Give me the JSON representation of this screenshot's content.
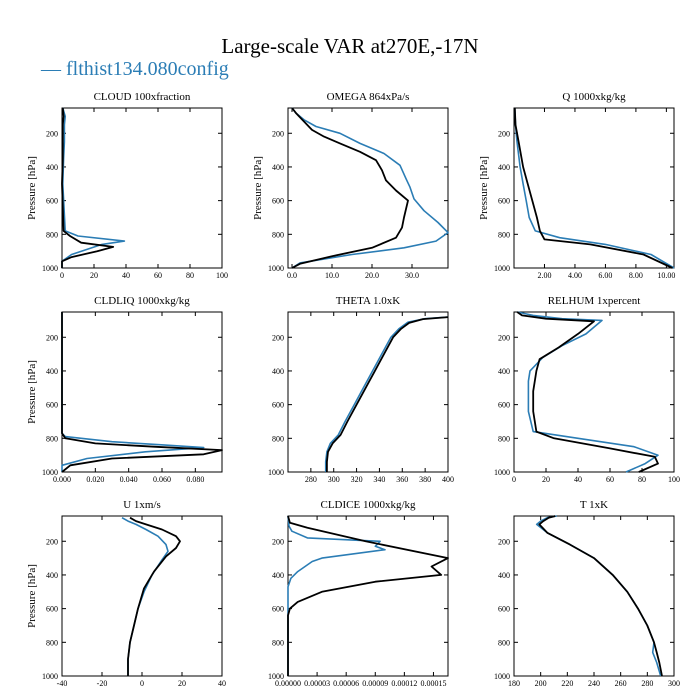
{
  "figure": {
    "title": "Large-scale VAR at270E,-17N",
    "legend": "— flthist134.080config",
    "colors": {
      "model": "#2b7db5",
      "observed": "#000000"
    }
  },
  "chart_data": [
    {
      "type": "line",
      "title": "CLOUD  100xfraction",
      "ylabel": "Pressure [hPa]",
      "xlim": [
        0,
        100
      ],
      "ylim": [
        1000,
        50
      ],
      "xticks": [
        0,
        20,
        40,
        60,
        80,
        100
      ],
      "xtick_labels": [
        "0",
        "20",
        "40",
        "60",
        "80",
        "100"
      ],
      "yticks": [
        200,
        400,
        600,
        800,
        1000
      ],
      "ytick_labels": [
        "200",
        "400",
        "600",
        "800",
        "1000"
      ],
      "series": [
        {
          "color": "#2b7db5",
          "x": [
            0.5,
            2,
            1.5,
            1.5,
            1,
            0.5,
            2,
            10,
            39,
            25,
            6,
            0,
            0
          ],
          "y": [
            50,
            100,
            150,
            250,
            350,
            500,
            780,
            810,
            840,
            860,
            920,
            960,
            1000
          ]
        },
        {
          "color": "#000000",
          "x": [
            0.5,
            1,
            0.5,
            0.5,
            0.5,
            0,
            1,
            5,
            12,
            32,
            22,
            6,
            0,
            0
          ],
          "y": [
            50,
            100,
            150,
            250,
            350,
            500,
            780,
            810,
            850,
            875,
            900,
            935,
            960,
            1000
          ]
        }
      ]
    },
    {
      "type": "line",
      "title": "OMEGA  864xPa/s",
      "ylabel": "Pressure [hPa]",
      "xlim": [
        -1,
        39
      ],
      "ylim": [
        1000,
        50
      ],
      "xticks": [
        0,
        10,
        20,
        30
      ],
      "xtick_labels": [
        "0.0",
        "10.0",
        "20.0",
        "30.0"
      ],
      "series": [
        {
          "color": "#2b7db5",
          "x": [
            0,
            1,
            3,
            6,
            12,
            17,
            23,
            27,
            28.5,
            29.5,
            30.5,
            33,
            36.5,
            39,
            36,
            28,
            15,
            2,
            0
          ],
          "y": [
            50,
            80,
            120,
            160,
            200,
            260,
            320,
            390,
            470,
            520,
            590,
            660,
            730,
            790,
            840,
            880,
            920,
            970,
            1000
          ]
        },
        {
          "color": "#000000",
          "x": [
            0,
            1,
            3,
            5,
            8,
            12,
            17,
            21,
            22.5,
            23.5,
            26,
            29,
            28,
            27.5,
            26,
            20,
            10,
            2,
            0
          ],
          "y": [
            50,
            80,
            130,
            180,
            220,
            260,
            310,
            360,
            420,
            480,
            540,
            600,
            700,
            760,
            820,
            880,
            930,
            975,
            1000
          ]
        }
      ]
    },
    {
      "type": "line",
      "title": "Q  1000xkg/kg",
      "ylabel": "Pressure [hPa]",
      "xlim": [
        0,
        10.5
      ],
      "ylim": [
        1000,
        50
      ],
      "xticks": [
        2,
        4,
        6,
        8,
        10
      ],
      "xtick_labels": [
        "2.00",
        "4.00",
        "6.00",
        "8.00",
        "10.00"
      ],
      "series": [
        {
          "color": "#2b7db5",
          "x": [
            0.05,
            0.1,
            0.2,
            0.4,
            0.6,
            0.8,
            1.0,
            1.4,
            3,
            6,
            9,
            10.5
          ],
          "y": [
            50,
            150,
            250,
            400,
            500,
            600,
            700,
            780,
            820,
            860,
            920,
            1000
          ]
        },
        {
          "color": "#000000",
          "x": [
            0.05,
            0.1,
            0.3,
            0.6,
            0.9,
            1.2,
            1.5,
            1.7,
            2,
            5,
            8.5,
            10.4
          ],
          "y": [
            50,
            150,
            250,
            400,
            500,
            600,
            700,
            780,
            830,
            860,
            920,
            1000
          ]
        }
      ]
    },
    {
      "type": "line",
      "title": "CLDLIQ  1000xkg/kg",
      "ylabel": "Pressure [hPa]",
      "xlim": [
        0,
        0.096
      ],
      "ylim": [
        1000,
        50
      ],
      "xticks": [
        0,
        0.02,
        0.04,
        0.06,
        0.08
      ],
      "xtick_labels": [
        "0.000",
        "0.020",
        "0.040",
        "0.060",
        "0.080"
      ],
      "series": [
        {
          "color": "#2b7db5",
          "x": [
            0,
            0,
            0,
            0.002,
            0.03,
            0.062,
            0.085,
            0.05,
            0.015,
            0,
            0
          ],
          "y": [
            50,
            400,
            770,
            790,
            820,
            840,
            855,
            880,
            920,
            960,
            1000
          ]
        },
        {
          "color": "#000000",
          "x": [
            0,
            0,
            0,
            0.002,
            0.02,
            0.055,
            0.096,
            0.085,
            0.03,
            0.005,
            0
          ],
          "y": [
            50,
            400,
            770,
            800,
            830,
            850,
            870,
            895,
            920,
            960,
            1000
          ]
        }
      ]
    },
    {
      "type": "line",
      "title": "THETA  1.0xK",
      "xlim": [
        260,
        400
      ],
      "ylim": [
        1000,
        50
      ],
      "xticks": [
        280,
        300,
        320,
        340,
        360,
        380,
        400
      ],
      "xtick_labels": [
        "280",
        "300",
        "320",
        "340",
        "360",
        "380",
        "400"
      ],
      "series": [
        {
          "color": "#2b7db5",
          "x": [
            400,
            380,
            365,
            357,
            350,
            342,
            334,
            326,
            318,
            310,
            304,
            297,
            294,
            293,
            293
          ],
          "y": [
            80,
            90,
            110,
            150,
            200,
            300,
            400,
            500,
            600,
            700,
            780,
            830,
            880,
            940,
            1000
          ]
        },
        {
          "color": "#000000",
          "x": [
            400,
            378,
            366,
            359,
            352,
            344,
            336,
            328,
            320,
            312,
            306,
            299,
            295,
            294,
            294
          ],
          "y": [
            80,
            92,
            115,
            150,
            200,
            300,
            400,
            500,
            600,
            700,
            780,
            830,
            880,
            940,
            1000
          ]
        }
      ]
    },
    {
      "type": "line",
      "title": "RELHUM  1xpercent",
      "xlim": [
        0,
        100
      ],
      "ylim": [
        1000,
        50
      ],
      "xticks": [
        0,
        20,
        40,
        60,
        80,
        100
      ],
      "xtick_labels": [
        "0",
        "20",
        "40",
        "60",
        "80",
        "100"
      ],
      "series": [
        {
          "color": "#2b7db5",
          "x": [
            2,
            12,
            30,
            55,
            45,
            30,
            18,
            10,
            9,
            9,
            9,
            12,
            40,
            75,
            90,
            82,
            70
          ],
          "y": [
            50,
            70,
            90,
            100,
            180,
            250,
            320,
            400,
            460,
            520,
            640,
            760,
            800,
            850,
            900,
            950,
            1000
          ]
        },
        {
          "color": "#000000",
          "x": [
            2,
            5,
            20,
            50,
            40,
            28,
            16,
            14,
            13,
            12,
            12,
            14,
            25,
            60,
            88,
            90,
            78
          ],
          "y": [
            50,
            70,
            90,
            105,
            180,
            260,
            330,
            400,
            460,
            520,
            640,
            760,
            800,
            860,
            910,
            950,
            1000
          ]
        }
      ]
    },
    {
      "type": "line",
      "title": "U  1xm/s",
      "ylabel": "Pressure [hPa]",
      "xlim": [
        -40,
        40
      ],
      "ylim": [
        1000,
        50
      ],
      "xticks": [
        -40,
        -20,
        0,
        20,
        40
      ],
      "xtick_labels": [
        "-40",
        "-20",
        "0",
        "20",
        "40"
      ],
      "series": [
        {
          "color": "#2b7db5",
          "x": [
            -10,
            -7,
            -3,
            2,
            8,
            12,
            13,
            10,
            5,
            1,
            -2,
            -4,
            -6,
            -7,
            -7
          ],
          "y": [
            60,
            80,
            100,
            130,
            170,
            220,
            260,
            310,
            400,
            500,
            600,
            700,
            800,
            900,
            1000
          ]
        },
        {
          "color": "#000000",
          "x": [
            -6,
            -3,
            2,
            10,
            17,
            19,
            17,
            12,
            6,
            1,
            -2,
            -4,
            -6,
            -7,
            -7
          ],
          "y": [
            60,
            80,
            100,
            130,
            170,
            200,
            240,
            290,
            380,
            480,
            600,
            700,
            800,
            900,
            1000
          ]
        }
      ]
    },
    {
      "type": "line",
      "title": "CLDICE  1000xkg/kg",
      "xlim": [
        0,
        0.000165
      ],
      "ylim": [
        1000,
        50
      ],
      "xticks": [
        0,
        3e-05,
        6e-05,
        9e-05,
        0.00012,
        0.00015
      ],
      "xtick_labels": [
        "0.00000",
        "0.00003",
        "0.00006",
        "0.00009",
        "0.00012",
        "0.00015"
      ],
      "series": [
        {
          "color": "#2b7db5",
          "x": [
            0,
            1e-06,
            4e-06,
            2e-05,
            9.5e-05,
            9e-05,
            0.0001,
            3.5e-05,
            2.5e-05,
            1e-05,
            3e-06,
            0,
            0
          ],
          "y": [
            50,
            110,
            140,
            180,
            200,
            230,
            250,
            300,
            320,
            380,
            420,
            470,
            1000
          ]
        },
        {
          "color": "#000000",
          "x": [
            0,
            2e-06,
            2e-05,
            8e-05,
            0.000165,
            0.000148,
            0.000158,
            9e-05,
            3.5e-05,
            1e-05,
            2e-06,
            0,
            0
          ],
          "y": [
            50,
            90,
            120,
            200,
            300,
            350,
            400,
            440,
            500,
            560,
            600,
            640,
            1000
          ]
        }
      ]
    },
    {
      "type": "line",
      "title": "T  1xK",
      "xlim": [
        180,
        300
      ],
      "ylim": [
        1000,
        50
      ],
      "xticks": [
        180,
        200,
        220,
        240,
        260,
        280,
        300
      ],
      "xtick_labels": [
        "180",
        "200",
        "220",
        "240",
        "260",
        "280",
        "300"
      ],
      "series": [
        {
          "color": "#2b7db5",
          "x": [
            212,
            205,
            200,
            197,
            205,
            222,
            240,
            254,
            265,
            273,
            280,
            285,
            284,
            287,
            290
          ],
          "y": [
            50,
            60,
            80,
            100,
            150,
            220,
            300,
            400,
            500,
            600,
            700,
            800,
            860,
            920,
            1000
          ]
        },
        {
          "color": "#000000",
          "x": [
            211,
            206,
            202,
            199,
            205,
            222,
            240,
            254,
            265,
            273,
            280,
            285,
            287,
            289,
            291
          ],
          "y": [
            50,
            60,
            80,
            100,
            150,
            220,
            300,
            400,
            500,
            600,
            700,
            800,
            860,
            920,
            1000
          ]
        }
      ]
    }
  ]
}
